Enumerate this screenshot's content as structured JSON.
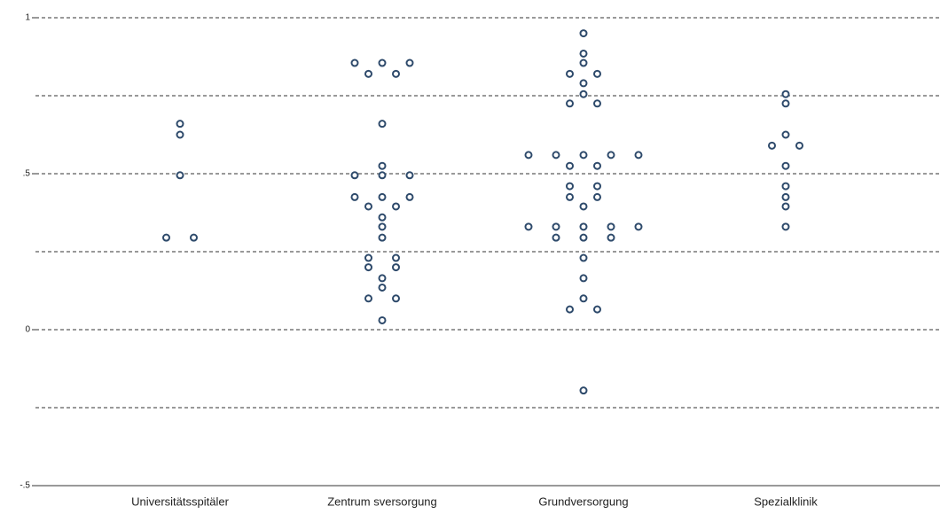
{
  "chart_data": {
    "type": "dot",
    "categories": [
      "Universitätsspitäler",
      "Zentrum sversorgung",
      "Grundversorgung",
      "Spezialklinik"
    ],
    "values": [
      [
        0.66,
        0.625,
        0.495,
        0.295,
        0.295
      ],
      [
        0.855,
        0.855,
        0.855,
        0.82,
        0.82,
        0.66,
        0.525,
        0.495,
        0.495,
        0.495,
        0.425,
        0.425,
        0.425,
        0.395,
        0.395,
        0.36,
        0.33,
        0.295,
        0.23,
        0.23,
        0.2,
        0.2,
        0.165,
        0.135,
        0.1,
        0.1,
        0.03
      ],
      [
        0.95,
        0.885,
        0.855,
        0.82,
        0.82,
        0.79,
        0.755,
        0.725,
        0.725,
        0.56,
        0.56,
        0.56,
        0.56,
        0.56,
        0.525,
        0.525,
        0.46,
        0.46,
        0.425,
        0.425,
        0.395,
        0.33,
        0.33,
        0.33,
        0.33,
        0.33,
        0.295,
        0.295,
        0.295,
        0.23,
        0.165,
        0.1,
        0.065,
        0.065,
        -0.195
      ],
      [
        0.755,
        0.725,
        0.625,
        0.59,
        0.59,
        0.525,
        0.46,
        0.425,
        0.395,
        0.33
      ]
    ],
    "color": "#2e4a6b",
    "ylim": [
      -0.5,
      1
    ],
    "yticks": [
      1,
      {
        "value": 0.5,
        "label": ".5"
      },
      0,
      {
        "value": -0.5,
        "label": "-.5"
      }
    ],
    "ygrid": [
      1,
      0.75,
      0.5,
      0.25,
      0,
      -0.25
    ]
  }
}
